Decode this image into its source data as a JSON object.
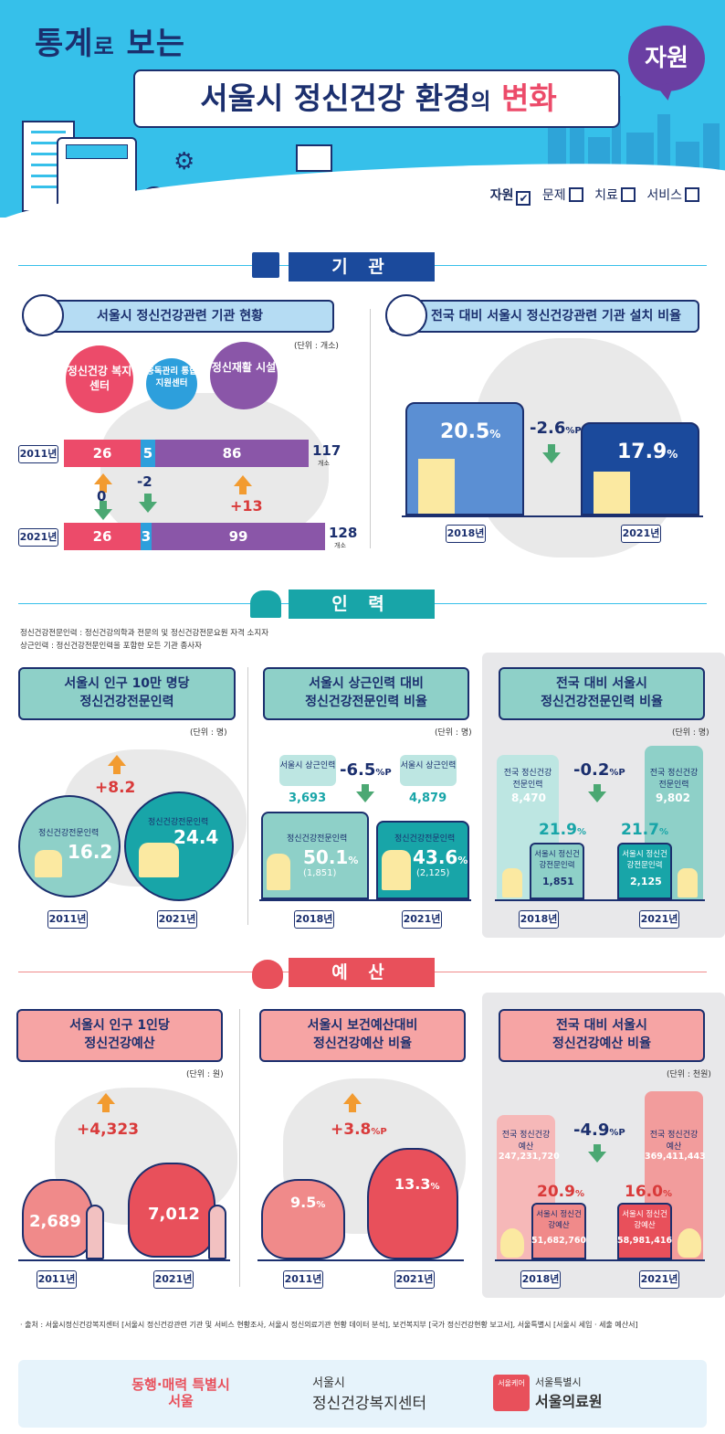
{
  "header": {
    "title_line1_a": "통계",
    "title_line1_b": "로",
    "title_line1_c": "보는",
    "title_line2_a": "서울시 정신건강 환경",
    "title_line2_b": "의",
    "title_line2_c": "변화",
    "badge": "자원"
  },
  "tabs": [
    {
      "label": "자원",
      "checked": true
    },
    {
      "label": "문제",
      "checked": false
    },
    {
      "label": "치료",
      "checked": false
    },
    {
      "label": "서비스",
      "checked": false
    }
  ],
  "institution": {
    "section_title": "기 관",
    "left_title": "서울시 정신건강관련 기관 현황",
    "right_title": "전국 대비 서울시 정신건강관련 기관 설치 비율",
    "unit": "(단위 : 개소)",
    "circles": [
      "정신건강 복지센터",
      "중독관리 통합 지원센터",
      "정신재활 시설"
    ],
    "rows": [
      {
        "year": "2011년",
        "a": "26",
        "b": "5",
        "c": "86",
        "total": "117",
        "total_unit": "개소"
      },
      {
        "year": "2021년",
        "a": "26",
        "b": "3",
        "c": "99",
        "total": "128",
        "total_unit": "개소"
      }
    ],
    "diffs": [
      "0",
      "-2",
      "+13"
    ],
    "ratio": {
      "y1": "2018년",
      "v1": "20.5",
      "u1": "%",
      "y2": "2021년",
      "v2": "17.9",
      "u2": "%",
      "change": "-2.6",
      "change_unit": "%P"
    }
  },
  "workforce": {
    "section_title": "인 력",
    "notes": [
      "정신건강전문인력 : 정신건강의학과 전문의 및 정신건강전문요원 자격 소지자",
      "상근인력 : 정신건강전문인력을 포함한 모든 기관 종사자"
    ],
    "p1": {
      "title_a": "서울시 인구 10만 명당",
      "title_b": "정신건강전문인력",
      "unit": "(단위 : 명)",
      "change": "+8.2",
      "l1": "정신건강전문인력",
      "v1": "16.2",
      "l2": "정신건강전문인력",
      "v2": "24.4",
      "y1": "2011년",
      "y2": "2021년"
    },
    "p2": {
      "title_a": "서울시 상근인력 대비",
      "title_b": "정신건강전문인력 비율",
      "unit": "(단위 : 명)",
      "s1_label": "서울시 상근인력",
      "s1": "3,693",
      "s2_label": "서울시 상근인력",
      "s2": "4,879",
      "change": "-6.5",
      "change_unit": "%P",
      "l1": "정신건강전문인력",
      "v1": "50.1",
      "sub1": "(1,851)",
      "l2": "정신건강전문인력",
      "v2": "43.6",
      "sub2": "(2,125)",
      "pct": "%",
      "y1": "2018년",
      "y2": "2021년"
    },
    "p3": {
      "title_a": "전국 대비 서울시",
      "title_b": "정신건강전문인력 비율",
      "unit": "(단위 : 명)",
      "n1_label": "전국 정신건강전문인력",
      "n1": "8,470",
      "n2_label": "전국 정신건강전문인력",
      "n2": "9,802",
      "change": "-0.2",
      "change_unit": "%P",
      "r1": "21.9",
      "r2": "21.7",
      "pct": "%",
      "s1_label": "서울시 정신건강전문인력",
      "s1": "1,851",
      "s2_label": "서울시 정신건강전문인력",
      "s2": "2,125",
      "y1": "2018년",
      "y2": "2021년"
    }
  },
  "budget": {
    "section_title": "예 산",
    "p1": {
      "title_a": "서울시 인구 1인당",
      "title_b": "정신건강예산",
      "unit": "(단위 : 원)",
      "change": "+4,323",
      "v1": "2,689",
      "v2": "7,012",
      "y1": "2011년",
      "y2": "2021년"
    },
    "p2": {
      "title_a": "서울시 보건예산대비",
      "title_b": "정신건강예산 비율",
      "change": "+3.8",
      "change_unit": "%P",
      "v1": "9.5",
      "v2": "13.3",
      "pct": "%",
      "y1": "2011년",
      "y2": "2021년"
    },
    "p3": {
      "title_a": "전국 대비 서울시",
      "title_b": "정신건강예산 비율",
      "unit": "(단위 : 천원)",
      "n1_label": "전국 정신건강예산",
      "n1": "247,231,720",
      "n2_label": "전국 정신건강예산",
      "n2": "369,411,443",
      "change": "-4.9",
      "change_unit": "%P",
      "r1": "20.9",
      "r2": "16.0",
      "pct": "%",
      "s1_label": "서울시 정신건강예산",
      "s1": "51,682,760",
      "s2_label": "서울시 정신건강예산",
      "s2": "58,981,416",
      "y1": "2018년",
      "y2": "2021년"
    }
  },
  "source": "· 출처 : 서울시정신건강복지센터 [서울시 정신건강관련 기관 및 서비스 현황조사, 서울시 정신의료기관 현황 데이터 분석], 보건복지부 [국가 정신건강현황 보고서], 서울특별시 [서울시 세입 · 세출 예산서]",
  "footer": {
    "logo1": "동행·매력 특별시 서울",
    "logo2_a": "서울시",
    "logo2_b": "정신건강복지센터",
    "logo3_badge": "서울케어",
    "logo3_a": "서울특별시",
    "logo3_b": "서울의료원"
  },
  "colors": {
    "navy": "#1b2f6e",
    "blue": "#1b4a9c",
    "sky": "#36c0ea",
    "pink": "#ec4b6a",
    "purple": "#8a56a8",
    "teal": "#18a5a8",
    "red": "#e8505b"
  }
}
